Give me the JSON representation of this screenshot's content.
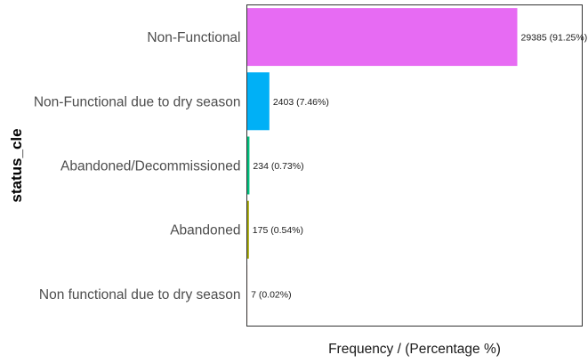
{
  "chart_data": {
    "type": "bar",
    "orientation": "horizontal",
    "title": "",
    "xlabel": "Frequency / (Percentage %)",
    "ylabel": "status_cle",
    "xlim": [
      0,
      36500
    ],
    "grid": false,
    "legend": "none",
    "categories": [
      "Non-Functional",
      "Non-Functional due to dry season",
      "Abandoned/Decommissioned",
      "Abandoned",
      "Non functional due to dry season"
    ],
    "values": [
      29385,
      2403,
      234,
      175,
      7
    ],
    "data_labels": [
      "29385 (91.25%)",
      "2403 (7.46%)",
      "234 (0.73%)",
      "175 (0.54%)",
      "7 (0.02%)"
    ],
    "colors": [
      "#E76BF3",
      "#00B0F6",
      "#00BF7D",
      "#A3A500",
      "#F8766D"
    ]
  }
}
